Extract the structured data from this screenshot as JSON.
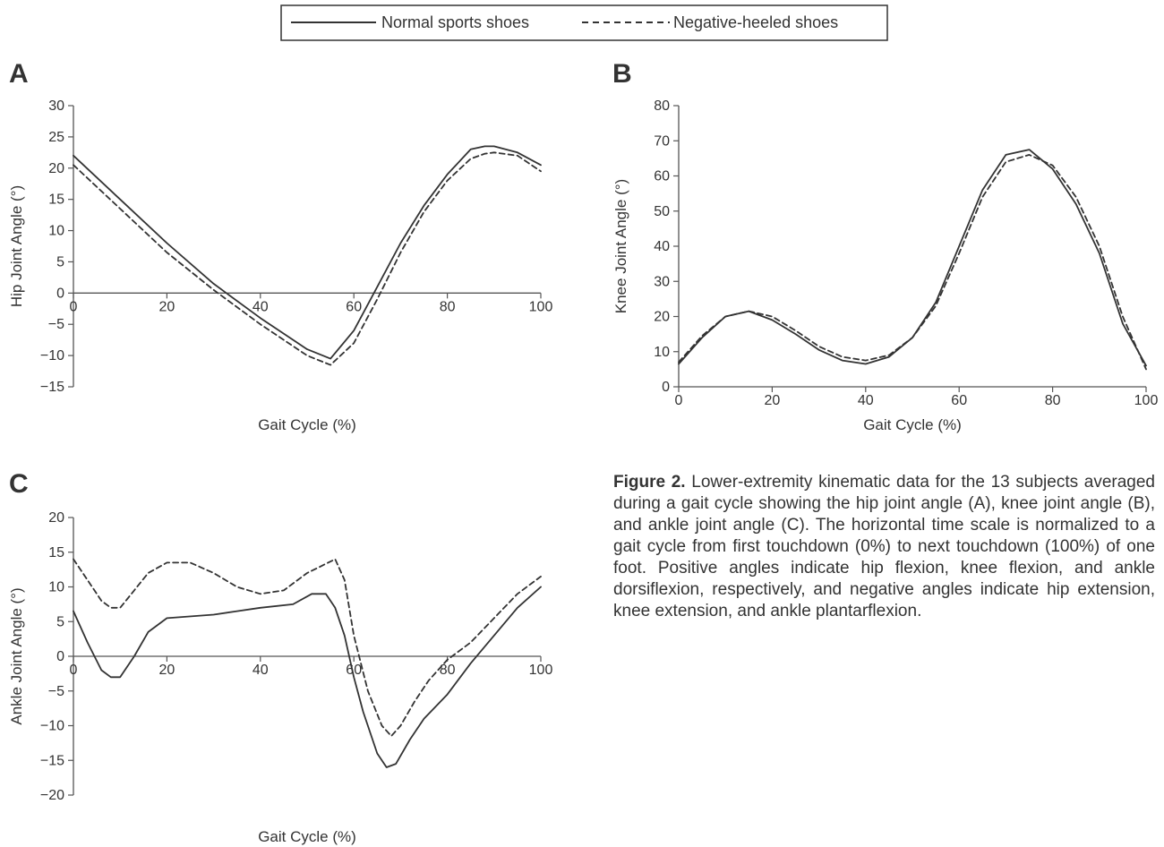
{
  "legend": {
    "items": [
      {
        "name": "Normal sports shoes",
        "style": "solid"
      },
      {
        "name": "Negative-heeled shoes",
        "style": "dashed"
      }
    ]
  },
  "caption": {
    "label": "Figure 2.",
    "text": "Lower-extremity kinematic data for the 13 subjects averaged during a gait cycle showing the hip joint angle (A), knee joint angle (B), and ankle joint angle (C). The horizontal time scale is normalized to a gait cycle from first touchdown (0%) to next touchdown (100%) of one foot. Positive angles indicate hip flexion, knee flexion, and ankle dorsiflexion, respectively, and negative angles indicate hip extension, knee extension, and ankle plantarflexion."
  },
  "colors": {
    "line": "#333333",
    "axis": "#555555",
    "frame": "#333333"
  },
  "chart_data": [
    {
      "type": "line",
      "panel": "A",
      "xlabel": "Gait Cycle (%)",
      "ylabel": "Hip Joint Angle (°)",
      "xlim": [
        0,
        100
      ],
      "ylim": [
        -15,
        30
      ],
      "xticks": [
        0,
        20,
        40,
        60,
        80,
        100
      ],
      "yticks": [
        -15,
        -10,
        -5,
        0,
        5,
        10,
        15,
        20,
        25,
        30
      ],
      "x_axis_at": 0,
      "grid": false,
      "series": [
        {
          "name": "Normal sports shoes",
          "style": "solid",
          "x": [
            0,
            10,
            20,
            30,
            40,
            50,
            55,
            60,
            65,
            70,
            75,
            80,
            85,
            88,
            90,
            95,
            100
          ],
          "y": [
            22,
            15,
            8,
            1.5,
            -4,
            -9,
            -10.5,
            -6,
            1,
            8,
            14,
            19,
            23,
            23.5,
            23.5,
            22.5,
            20.5
          ]
        },
        {
          "name": "Negative-heeled shoes",
          "style": "dashed",
          "x": [
            0,
            10,
            20,
            30,
            40,
            50,
            55,
            60,
            65,
            70,
            75,
            80,
            85,
            88,
            90,
            95,
            100
          ],
          "y": [
            20.5,
            13.5,
            6.5,
            0.5,
            -5,
            -10,
            -11.5,
            -8,
            -1,
            6.5,
            13,
            18,
            21.5,
            22.3,
            22.5,
            22,
            19.5
          ]
        }
      ]
    },
    {
      "type": "line",
      "panel": "B",
      "xlabel": "Gait Cycle (%)",
      "ylabel": "Knee Joint Angle (°)",
      "xlim": [
        0,
        100
      ],
      "ylim": [
        0,
        80
      ],
      "xticks": [
        0,
        20,
        40,
        60,
        80,
        100
      ],
      "yticks": [
        0,
        10,
        20,
        30,
        40,
        50,
        60,
        70,
        80
      ],
      "x_axis_at": 0,
      "grid": false,
      "series": [
        {
          "name": "Normal sports shoes",
          "style": "solid",
          "x": [
            0,
            5,
            10,
            15,
            20,
            25,
            30,
            35,
            40,
            45,
            50,
            55,
            60,
            65,
            70,
            75,
            80,
            85,
            90,
            95,
            100
          ],
          "y": [
            6.5,
            14,
            20,
            21.5,
            19,
            15,
            10.5,
            7.5,
            6.5,
            8.5,
            14,
            24,
            40,
            56,
            66,
            67.5,
            62,
            52,
            38,
            18,
            6
          ]
        },
        {
          "name": "Negative-heeled shoes",
          "style": "dashed",
          "x": [
            0,
            5,
            10,
            15,
            20,
            25,
            30,
            35,
            40,
            45,
            50,
            55,
            60,
            65,
            70,
            75,
            80,
            85,
            90,
            95,
            100
          ],
          "y": [
            7,
            14.5,
            20,
            21.5,
            20,
            16,
            11.5,
            8.5,
            7.5,
            9,
            14,
            23,
            38,
            54,
            64,
            66,
            63,
            54,
            40,
            20,
            5
          ]
        }
      ]
    },
    {
      "type": "line",
      "panel": "C",
      "xlabel": "Gait Cycle (%)",
      "ylabel": "Ankle Joint Angle (°)",
      "xlim": [
        0,
        100
      ],
      "ylim": [
        -20,
        20
      ],
      "xticks": [
        0,
        20,
        40,
        60,
        80,
        100
      ],
      "yticks": [
        -20,
        -15,
        -10,
        -5,
        0,
        5,
        10,
        15,
        20
      ],
      "x_axis_at": 0,
      "grid": false,
      "series": [
        {
          "name": "Normal sports shoes",
          "style": "solid",
          "x": [
            0,
            3,
            6,
            8,
            10,
            13,
            16,
            20,
            30,
            35,
            40,
            47,
            51,
            54,
            56,
            58,
            60,
            62,
            65,
            67,
            69,
            72,
            75,
            80,
            85,
            90,
            95,
            100
          ],
          "y": [
            6.5,
            2,
            -2,
            -3,
            -3,
            0,
            3.5,
            5.5,
            6,
            6.5,
            7,
            7.5,
            9,
            9,
            7,
            3,
            -3,
            -8,
            -14,
            -16,
            -15.5,
            -12,
            -9,
            -5.5,
            -1,
            3,
            7,
            10
          ]
        },
        {
          "name": "Negative-heeled shoes",
          "style": "dashed",
          "x": [
            0,
            3,
            6,
            8,
            10,
            13,
            16,
            20,
            25,
            30,
            35,
            40,
            45,
            50,
            53,
            56,
            58,
            60,
            63,
            66,
            68,
            70,
            73,
            76,
            80,
            85,
            90,
            95,
            100
          ],
          "y": [
            14,
            11,
            8,
            7,
            7,
            9.5,
            12,
            13.5,
            13.5,
            12,
            10,
            9,
            9.5,
            12,
            13,
            14,
            11,
            3,
            -5,
            -10,
            -11.5,
            -10,
            -6.5,
            -3.5,
            -0.5,
            2,
            5.5,
            9,
            11.5
          ]
        }
      ]
    }
  ]
}
